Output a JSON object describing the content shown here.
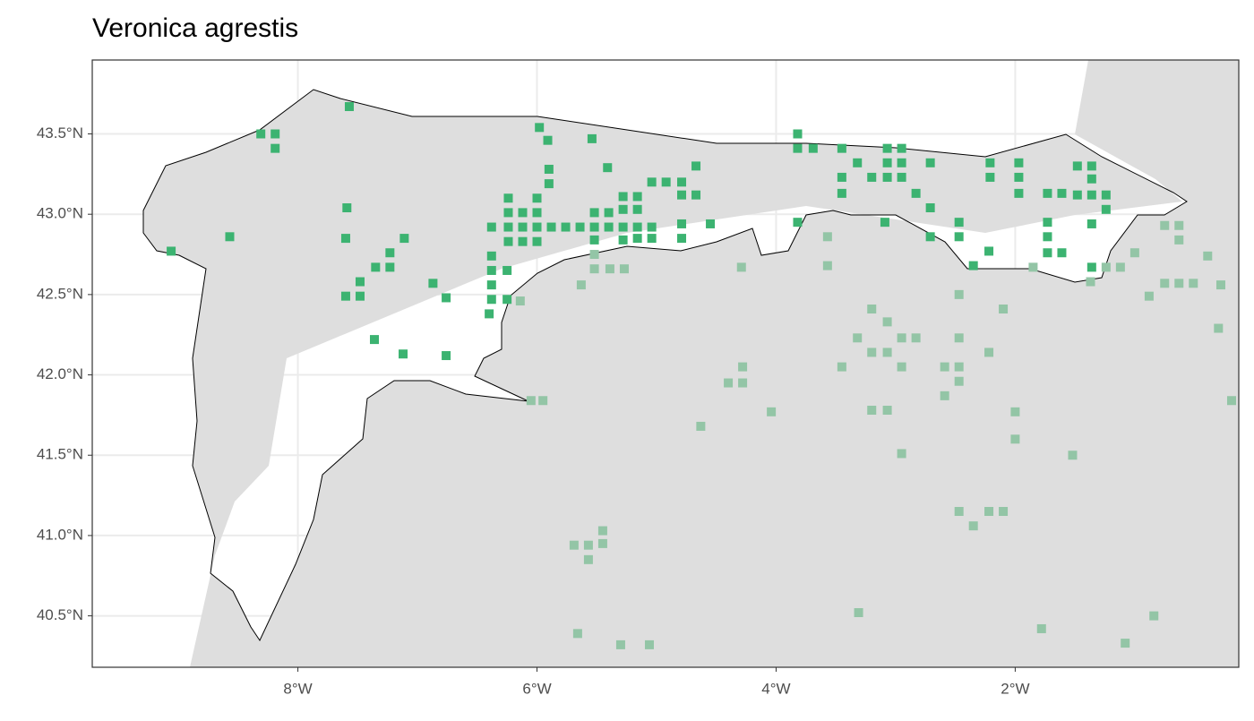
{
  "chart_data": {
    "type": "map-points",
    "title": "Veronica agrestis",
    "xlim": [
      -9.72,
      -0.13
    ],
    "ylim": [
      40.18,
      43.96
    ],
    "xticks": [
      {
        "value": -8,
        "label": "8°W"
      },
      {
        "value": -6,
        "label": "6°W"
      },
      {
        "value": -4,
        "label": "4°W"
      },
      {
        "value": -2,
        "label": "2°W"
      }
    ],
    "yticks": [
      {
        "value": 40.5,
        "label": "40.5°N"
      },
      {
        "value": 41.0,
        "label": "41.0°N"
      },
      {
        "value": 41.5,
        "label": "41.5°N"
      },
      {
        "value": 42.0,
        "label": "42.0°N"
      },
      {
        "value": 42.5,
        "label": "42.5°N"
      },
      {
        "value": 43.0,
        "label": "43.0°N"
      },
      {
        "value": 43.5,
        "label": "43.5°N"
      }
    ],
    "grid": true,
    "series": [
      {
        "color": "#3cb371",
        "x": [
          -8.31,
          -8.19,
          -8.19,
          -7.57,
          -5.98,
          -5.91,
          -5.54,
          -5.9,
          -5.9,
          -5.41,
          -4.67,
          -5.04,
          -4.92,
          -4.79,
          -4.79,
          -4.67,
          -6.24,
          -6.0,
          -5.28,
          -5.16,
          -3.82,
          -3.82,
          -3.69,
          -3.45,
          -3.32,
          -3.07,
          -2.95,
          -3.2,
          -3.07,
          -2.95,
          -3.07,
          -2.95,
          -2.71,
          -2.21,
          -1.97,
          -2.21,
          -1.97,
          -1.97,
          -3.45,
          -3.45,
          -2.83,
          -1.48,
          -1.36,
          -1.36,
          -1.36,
          -1.24,
          -1.48,
          -1.61,
          -1.73,
          -1.24,
          -7.59,
          -6.24,
          -6.12,
          -6.0,
          -5.52,
          -5.4,
          -5.28,
          -5.16,
          -6.38,
          -6.24,
          -6.12,
          -6.0,
          -5.88,
          -5.76,
          -5.64,
          -5.52,
          -5.4,
          -5.28,
          -5.16,
          -5.04,
          -4.79,
          -4.55,
          -3.82,
          -3.09,
          -2.71,
          -2.47,
          -1.73,
          -1.36,
          -8.57,
          -7.6,
          -6.24,
          -6.12,
          -6.0,
          -5.52,
          -5.28,
          -5.16,
          -5.04,
          -4.79,
          -2.71,
          -2.47,
          -1.73,
          -1.73,
          -1.61,
          -6.38,
          -7.11,
          -7.23,
          -7.35,
          -7.23,
          -6.38,
          -6.25,
          -2.35,
          -2.22,
          -1.36,
          -9.06,
          -7.48,
          -6.87,
          -6.38,
          -7.6,
          -7.48,
          -6.76,
          -6.38,
          -6.25,
          -6.4,
          -7.36,
          -7.12,
          -6.76
        ],
        "y": [
          43.5,
          43.5,
          43.41,
          43.67,
          43.54,
          43.46,
          43.47,
          43.28,
          43.19,
          43.29,
          43.3,
          43.2,
          43.2,
          43.2,
          43.12,
          43.12,
          43.1,
          43.1,
          43.11,
          43.11,
          43.5,
          43.41,
          43.41,
          43.41,
          43.32,
          43.41,
          43.41,
          43.23,
          43.23,
          43.23,
          43.32,
          43.32,
          43.32,
          43.32,
          43.32,
          43.23,
          43.23,
          43.13,
          43.23,
          43.13,
          43.13,
          43.3,
          43.3,
          43.22,
          43.12,
          43.12,
          43.12,
          43.13,
          43.13,
          43.03,
          43.04,
          43.01,
          43.01,
          43.01,
          43.01,
          43.01,
          43.03,
          43.03,
          42.92,
          42.92,
          42.92,
          42.92,
          42.92,
          42.92,
          42.92,
          42.92,
          42.92,
          42.92,
          42.92,
          42.92,
          42.94,
          42.94,
          42.95,
          42.95,
          43.04,
          42.95,
          42.95,
          42.94,
          42.86,
          42.85,
          42.83,
          42.83,
          42.83,
          42.84,
          42.84,
          42.85,
          42.85,
          42.85,
          42.86,
          42.86,
          42.86,
          42.76,
          42.76,
          42.74,
          42.85,
          42.76,
          42.67,
          42.67,
          42.65,
          42.65,
          42.68,
          42.77,
          42.67,
          42.77,
          42.58,
          42.57,
          42.56,
          42.49,
          42.49,
          42.48,
          42.47,
          42.47,
          42.38,
          42.22,
          42.13,
          42.12
        ]
      },
      {
        "color": "#93c5a6",
        "x": [
          -5.52,
          -5.52,
          -5.39,
          -5.27,
          -6.14,
          -5.63,
          -4.29,
          -3.57,
          -3.57,
          -2.47,
          -2.1,
          -1.85,
          -1.37,
          -1.24,
          -1.12,
          -1.0,
          -0.75,
          -0.63,
          -0.63,
          -0.39,
          -0.75,
          -0.63,
          -0.51,
          -0.28,
          -0.88,
          -0.3,
          -3.2,
          -3.07,
          -3.32,
          -2.95,
          -2.83,
          -2.47,
          -3.2,
          -3.07,
          -2.22,
          -3.45,
          -2.95,
          -2.59,
          -2.47,
          -4.28,
          -4.4,
          -4.28,
          -2.47,
          -2.59,
          -4.04,
          -6.05,
          -5.95,
          -4.63,
          -3.2,
          -3.07,
          -2.0,
          -2.0,
          -2.95,
          -1.52,
          -0.19,
          -2.47,
          -2.22,
          -2.1,
          -2.35,
          -5.45,
          -5.69,
          -5.57,
          -5.45,
          -5.57,
          -5.66,
          -5.3,
          -5.06,
          -3.31,
          -1.78,
          -0.84,
          -1.08
        ],
        "y": [
          42.75,
          42.66,
          42.66,
          42.66,
          42.46,
          42.56,
          42.67,
          42.86,
          42.68,
          42.5,
          42.41,
          42.67,
          42.58,
          42.67,
          42.67,
          42.76,
          42.93,
          42.93,
          42.84,
          42.74,
          42.57,
          42.57,
          42.57,
          42.56,
          42.49,
          42.29,
          42.41,
          42.33,
          42.23,
          42.23,
          42.23,
          42.23,
          42.14,
          42.14,
          42.14,
          42.05,
          42.05,
          42.05,
          42.05,
          42.05,
          41.95,
          41.95,
          41.96,
          41.87,
          41.77,
          41.84,
          41.84,
          41.68,
          41.78,
          41.78,
          41.77,
          41.6,
          41.51,
          41.5,
          41.84,
          41.15,
          41.15,
          41.15,
          41.06,
          41.03,
          40.94,
          40.94,
          40.95,
          40.85,
          40.39,
          40.32,
          40.32,
          40.52,
          40.42,
          40.5,
          40.33
        ]
      }
    ]
  }
}
